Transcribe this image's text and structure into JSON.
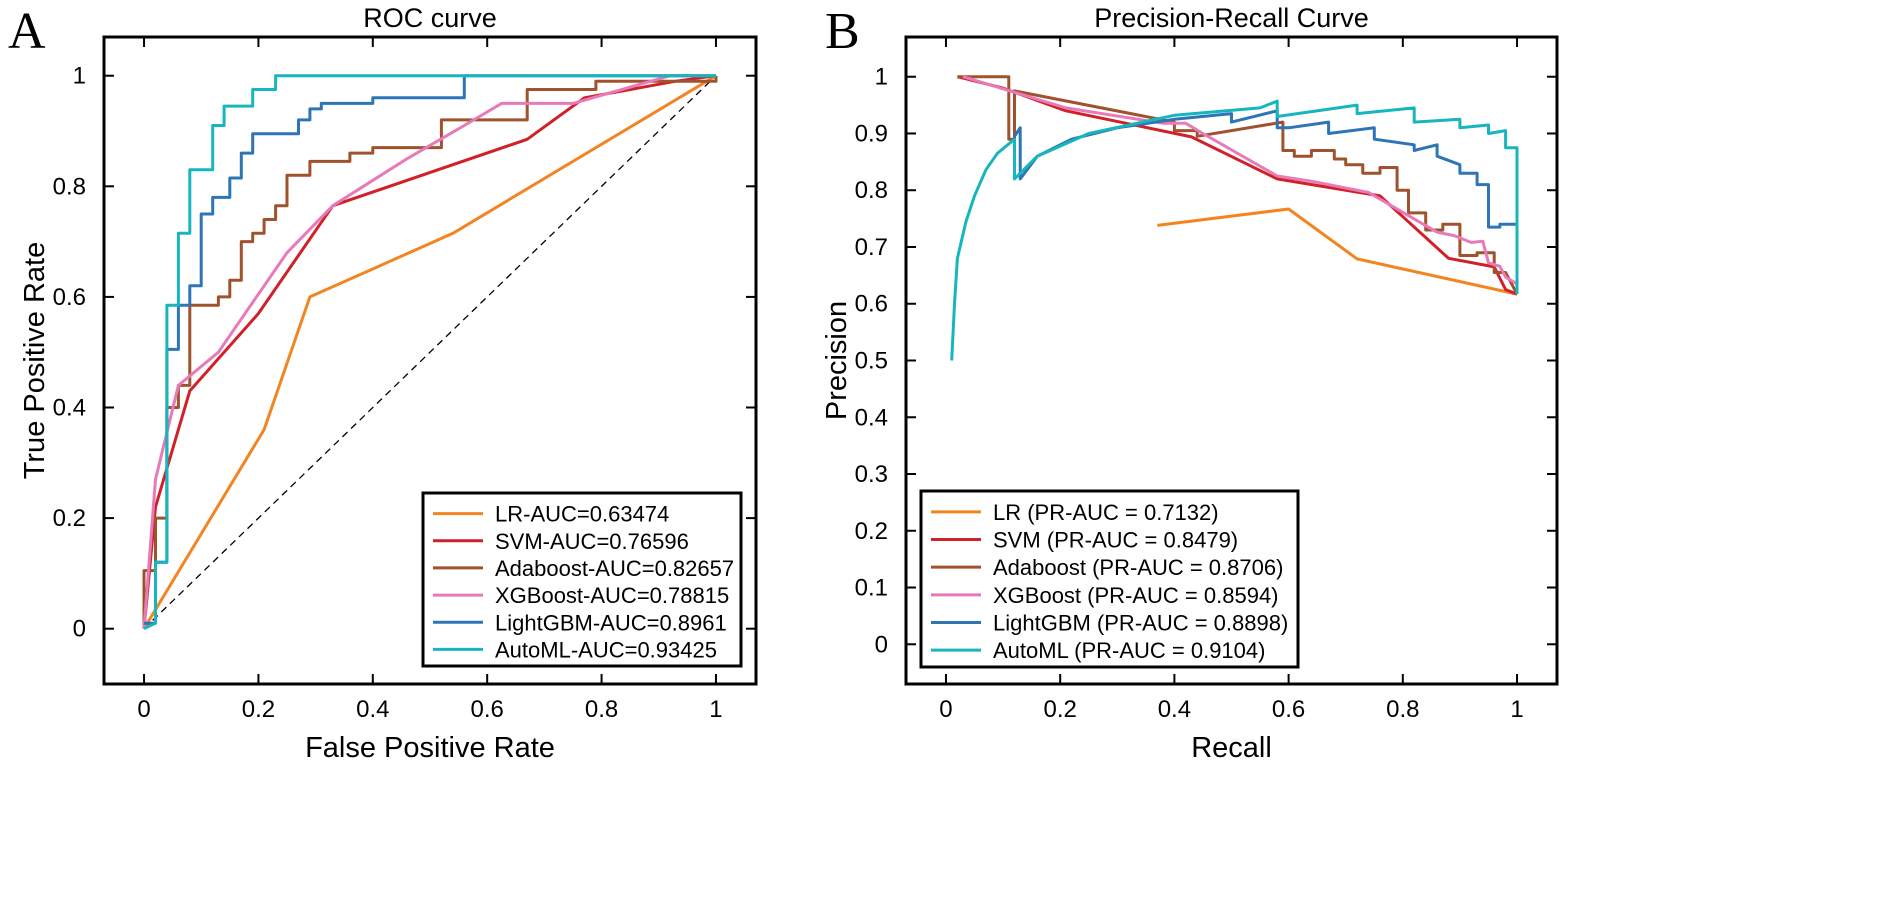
{
  "chart_data": [
    {
      "panel_label": "A",
      "type": "line",
      "title": "ROC curve",
      "xlabel": "False Positive Rate",
      "ylabel": "True Positive Rate",
      "xlim": [
        -0.07,
        1.07
      ],
      "ylim": [
        -0.1,
        1.07
      ],
      "xticks": [
        "0",
        "0.2",
        "0.4",
        "0.6",
        "0.8",
        "1"
      ],
      "yticks": [
        "0",
        "0.2",
        "0.4",
        "0.6",
        "0.8",
        "1"
      ],
      "grid": false,
      "legend_position": "bottom-right",
      "reference_line": {
        "style": "dashed",
        "points": [
          [
            0,
            0
          ],
          [
            1,
            1
          ]
        ]
      },
      "series": [
        {
          "name": "LR-AUC=0.63474",
          "color": "#F28522",
          "points": [
            [
              0,
              0
            ],
            [
              0.21,
              0.36
            ],
            [
              0.29,
              0.6
            ],
            [
              0.54,
              0.715
            ],
            [
              1,
              1
            ]
          ]
        },
        {
          "name": "SVM-AUC=0.76596",
          "color": "#D12128",
          "points": [
            [
              0,
              0
            ],
            [
              0.02,
              0.22
            ],
            [
              0.08,
              0.43
            ],
            [
              0.2,
              0.57
            ],
            [
              0.33,
              0.765
            ],
            [
              0.67,
              0.885
            ],
            [
              0.77,
              0.96
            ],
            [
              0.93,
              0.99
            ],
            [
              1,
              1
            ]
          ]
        },
        {
          "name": "Adaboost-AUC=0.82657",
          "color": "#A0522D",
          "points": [
            [
              0,
              0
            ],
            [
              0,
              0.105
            ],
            [
              0.02,
              0.105
            ],
            [
              0.02,
              0.2
            ],
            [
              0.04,
              0.2
            ],
            [
              0.04,
              0.4
            ],
            [
              0.06,
              0.4
            ],
            [
              0.06,
              0.44
            ],
            [
              0.08,
              0.44
            ],
            [
              0.08,
              0.585
            ],
            [
              0.13,
              0.585
            ],
            [
              0.13,
              0.6
            ],
            [
              0.15,
              0.6
            ],
            [
              0.15,
              0.63
            ],
            [
              0.17,
              0.63
            ],
            [
              0.17,
              0.7
            ],
            [
              0.19,
              0.7
            ],
            [
              0.19,
              0.715
            ],
            [
              0.21,
              0.715
            ],
            [
              0.21,
              0.74
            ],
            [
              0.23,
              0.74
            ],
            [
              0.23,
              0.765
            ],
            [
              0.25,
              0.765
            ],
            [
              0.25,
              0.82
            ],
            [
              0.29,
              0.82
            ],
            [
              0.29,
              0.845
            ],
            [
              0.36,
              0.845
            ],
            [
              0.36,
              0.86
            ],
            [
              0.4,
              0.86
            ],
            [
              0.4,
              0.87
            ],
            [
              0.52,
              0.87
            ],
            [
              0.52,
              0.92
            ],
            [
              0.67,
              0.92
            ],
            [
              0.67,
              0.975
            ],
            [
              0.79,
              0.975
            ],
            [
              0.79,
              0.99
            ],
            [
              1,
              0.99
            ],
            [
              1,
              1
            ]
          ]
        },
        {
          "name": "XGBoost-AUC=0.78815",
          "color": "#E87AB9",
          "points": [
            [
              0,
              0
            ],
            [
              0.02,
              0.27
            ],
            [
              0.06,
              0.44
            ],
            [
              0.13,
              0.5
            ],
            [
              0.19,
              0.59
            ],
            [
              0.25,
              0.68
            ],
            [
              0.33,
              0.765
            ],
            [
              0.46,
              0.85
            ],
            [
              0.56,
              0.91
            ],
            [
              0.625,
              0.95
            ],
            [
              0.75,
              0.95
            ],
            [
              0.92,
              1
            ],
            [
              1,
              1
            ]
          ]
        },
        {
          "name": "LightGBM-AUC=0.8961",
          "color": "#2E75B6",
          "points": [
            [
              0,
              0.01
            ],
            [
              0.02,
              0.01
            ],
            [
              0.02,
              0.12
            ],
            [
              0.04,
              0.12
            ],
            [
              0.04,
              0.505
            ],
            [
              0.06,
              0.505
            ],
            [
              0.06,
              0.585
            ],
            [
              0.08,
              0.585
            ],
            [
              0.08,
              0.62
            ],
            [
              0.1,
              0.62
            ],
            [
              0.1,
              0.75
            ],
            [
              0.12,
              0.75
            ],
            [
              0.12,
              0.78
            ],
            [
              0.15,
              0.78
            ],
            [
              0.15,
              0.815
            ],
            [
              0.17,
              0.815
            ],
            [
              0.17,
              0.86
            ],
            [
              0.19,
              0.86
            ],
            [
              0.19,
              0.895
            ],
            [
              0.27,
              0.895
            ],
            [
              0.27,
              0.92
            ],
            [
              0.29,
              0.92
            ],
            [
              0.29,
              0.94
            ],
            [
              0.31,
              0.94
            ],
            [
              0.31,
              0.95
            ],
            [
              0.4,
              0.95
            ],
            [
              0.4,
              0.96
            ],
            [
              0.56,
              0.96
            ],
            [
              0.56,
              1
            ],
            [
              1,
              1
            ]
          ]
        },
        {
          "name": "AutoML-AUC=0.93425",
          "color": "#17B6BE",
          "points": [
            [
              0,
              0
            ],
            [
              0.02,
              0.01
            ],
            [
              0.02,
              0.12
            ],
            [
              0.04,
              0.12
            ],
            [
              0.04,
              0.585
            ],
            [
              0.06,
              0.585
            ],
            [
              0.06,
              0.715
            ],
            [
              0.08,
              0.715
            ],
            [
              0.08,
              0.83
            ],
            [
              0.12,
              0.83
            ],
            [
              0.12,
              0.91
            ],
            [
              0.14,
              0.91
            ],
            [
              0.14,
              0.945
            ],
            [
              0.19,
              0.945
            ],
            [
              0.19,
              0.975
            ],
            [
              0.23,
              0.975
            ],
            [
              0.23,
              1
            ],
            [
              1,
              1
            ]
          ]
        }
      ]
    },
    {
      "panel_label": "B",
      "type": "line",
      "title": "Precision-Recall Curve",
      "xlabel": "Recall",
      "ylabel": "Precision",
      "xlim": [
        -0.07,
        1.07
      ],
      "ylim": [
        -0.07,
        1.07
      ],
      "xticks": [
        "0",
        "0.2",
        "0.4",
        "0.6",
        "0.8",
        "1"
      ],
      "yticks": [
        "0",
        "0.1",
        "0.2",
        "0.3",
        "0.4",
        "0.5",
        "0.6",
        "0.7",
        "0.8",
        "0.9",
        "1"
      ],
      "grid": false,
      "legend_position": "bottom-left",
      "series": [
        {
          "name": "LR (PR-AUC = 0.7132)",
          "color": "#F28522",
          "points": [
            [
              0.37,
              0.738
            ],
            [
              0.6,
              0.767
            ],
            [
              0.72,
              0.679
            ],
            [
              1,
              0.617
            ]
          ]
        },
        {
          "name": "SVM (PR-AUC = 0.8479)",
          "color": "#D12128",
          "points": [
            [
              0.02,
              1
            ],
            [
              0.1,
              0.98
            ],
            [
              0.21,
              0.94
            ],
            [
              0.43,
              0.894
            ],
            [
              0.58,
              0.82
            ],
            [
              0.76,
              0.79
            ],
            [
              0.88,
              0.68
            ],
            [
              0.96,
              0.665
            ],
            [
              0.98,
              0.625
            ],
            [
              1,
              0.617
            ]
          ]
        },
        {
          "name": "Adaboost (PR-AUC = 0.8706)",
          "color": "#A0522D",
          "points": [
            [
              0.02,
              1
            ],
            [
              0.11,
              1
            ],
            [
              0.11,
              0.89
            ],
            [
              0.12,
              0.89
            ],
            [
              0.12,
              0.975
            ],
            [
              0.4,
              0.92
            ],
            [
              0.4,
              0.905
            ],
            [
              0.44,
              0.905
            ],
            [
              0.44,
              0.895
            ],
            [
              0.59,
              0.92
            ],
            [
              0.59,
              0.87
            ],
            [
              0.61,
              0.87
            ],
            [
              0.61,
              0.86
            ],
            [
              0.64,
              0.86
            ],
            [
              0.64,
              0.87
            ],
            [
              0.68,
              0.87
            ],
            [
              0.68,
              0.855
            ],
            [
              0.7,
              0.855
            ],
            [
              0.7,
              0.845
            ],
            [
              0.73,
              0.845
            ],
            [
              0.73,
              0.83
            ],
            [
              0.76,
              0.83
            ],
            [
              0.76,
              0.84
            ],
            [
              0.79,
              0.84
            ],
            [
              0.79,
              0.8
            ],
            [
              0.81,
              0.8
            ],
            [
              0.81,
              0.76
            ],
            [
              0.84,
              0.76
            ],
            [
              0.84,
              0.73
            ],
            [
              0.87,
              0.73
            ],
            [
              0.87,
              0.74
            ],
            [
              0.9,
              0.74
            ],
            [
              0.9,
              0.685
            ],
            [
              0.93,
              0.685
            ],
            [
              0.93,
              0.69
            ],
            [
              0.96,
              0.69
            ],
            [
              0.96,
              0.655
            ],
            [
              0.98,
              0.655
            ],
            [
              0.98,
              0.655
            ],
            [
              1,
              0.617
            ]
          ]
        },
        {
          "name": "XGBoost (PR-AUC = 0.8594)",
          "color": "#E87AB9",
          "points": [
            [
              0.03,
              1
            ],
            [
              0.21,
              0.945
            ],
            [
              0.38,
              0.918
            ],
            [
              0.42,
              0.918
            ],
            [
              0.45,
              0.9
            ],
            [
              0.58,
              0.825
            ],
            [
              0.64,
              0.816
            ],
            [
              0.74,
              0.796
            ],
            [
              0.86,
              0.726
            ],
            [
              0.89,
              0.72
            ],
            [
              0.92,
              0.708
            ],
            [
              0.94,
              0.71
            ],
            [
              0.95,
              0.672
            ],
            [
              0.97,
              0.666
            ],
            [
              0.98,
              0.647
            ],
            [
              1,
              0.635
            ]
          ]
        },
        {
          "name": "LightGBM (PR-AUC = 0.8898)",
          "color": "#2E75B6",
          "points": [
            [
              0.12,
              0.82
            ],
            [
              0.12,
              0.895
            ],
            [
              0.13,
              0.91
            ],
            [
              0.13,
              0.82
            ],
            [
              0.16,
              0.86
            ],
            [
              0.22,
              0.89
            ],
            [
              0.3,
              0.91
            ],
            [
              0.4,
              0.925
            ],
            [
              0.5,
              0.935
            ],
            [
              0.5,
              0.92
            ],
            [
              0.58,
              0.94
            ],
            [
              0.58,
              0.91
            ],
            [
              0.6,
              0.91
            ],
            [
              0.67,
              0.92
            ],
            [
              0.67,
              0.9
            ],
            [
              0.75,
              0.91
            ],
            [
              0.75,
              0.89
            ],
            [
              0.82,
              0.88
            ],
            [
              0.82,
              0.87
            ],
            [
              0.86,
              0.88
            ],
            [
              0.86,
              0.86
            ],
            [
              0.9,
              0.845
            ],
            [
              0.9,
              0.83
            ],
            [
              0.93,
              0.83
            ],
            [
              0.93,
              0.81
            ],
            [
              0.95,
              0.81
            ],
            [
              0.95,
              0.735
            ],
            [
              0.97,
              0.735
            ],
            [
              0.97,
              0.74
            ],
            [
              1,
              0.74
            ],
            [
              1,
              0.617
            ]
          ]
        },
        {
          "name": "AutoML (PR-AUC = 0.9104)",
          "color": "#17B6BE",
          "points": [
            [
              0.01,
              0.5
            ],
            [
              0.015,
              0.6
            ],
            [
              0.02,
              0.68
            ],
            [
              0.035,
              0.745
            ],
            [
              0.05,
              0.79
            ],
            [
              0.07,
              0.836
            ],
            [
              0.09,
              0.865
            ],
            [
              0.12,
              0.89
            ],
            [
              0.12,
              0.82
            ],
            [
              0.16,
              0.86
            ],
            [
              0.25,
              0.9
            ],
            [
              0.4,
              0.932
            ],
            [
              0.55,
              0.945
            ],
            [
              0.58,
              0.957
            ],
            [
              0.58,
              0.93
            ],
            [
              0.72,
              0.95
            ],
            [
              0.72,
              0.935
            ],
            [
              0.82,
              0.945
            ],
            [
              0.82,
              0.92
            ],
            [
              0.9,
              0.925
            ],
            [
              0.9,
              0.91
            ],
            [
              0.95,
              0.915
            ],
            [
              0.95,
              0.9
            ],
            [
              0.98,
              0.905
            ],
            [
              0.98,
              0.875
            ],
            [
              1,
              0.875
            ],
            [
              1,
              0.617
            ]
          ]
        }
      ]
    }
  ]
}
